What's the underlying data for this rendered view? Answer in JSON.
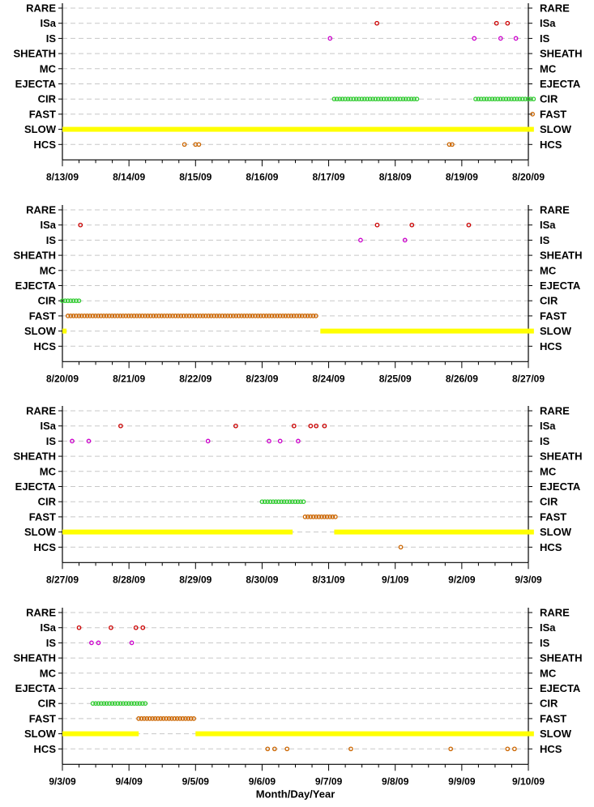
{
  "colors": {
    "RARE": "#000000",
    "ISa": "#cc0000",
    "IS": "#cc00cc",
    "SHEATH": "#000000",
    "MC": "#000000",
    "EJECTA": "#000000",
    "CIR": "#33cc33",
    "FAST": "#cc6600",
    "SLOW": "#ffff00",
    "HCS": "#cc6600",
    "grid": "#c8c8c8",
    "axis": "#000000"
  },
  "chart_data": [
    {
      "type": "scatter",
      "title": "",
      "xlabel": "",
      "ylabel": "",
      "categories": [
        "RARE",
        "ISa",
        "IS",
        "SHEATH",
        "MC",
        "EJECTA",
        "CIR",
        "FAST",
        "SLOW",
        "HCS"
      ],
      "xlim": [
        "2009-08-13",
        "2009-08-20"
      ],
      "x_ticks": [
        "8/13/09",
        "8/14/09",
        "8/15/09",
        "8/16/09",
        "8/17/09",
        "8/18/09",
        "8/19/09",
        "8/20/09"
      ],
      "grid": true,
      "series": [
        {
          "name": "ISa",
          "points": [
            [
              "2009-08-17",
              17.4
            ],
            [
              "2009-08-19",
              12.5
            ],
            [
              "2009-08-19",
              16.5
            ]
          ]
        },
        {
          "name": "IS",
          "points": [
            [
              "2009-08-17",
              0.5
            ],
            [
              "2009-08-19",
              4.5
            ],
            [
              "2009-08-19",
              14.0
            ],
            [
              "2009-08-19",
              19.5
            ]
          ]
        },
        {
          "name": "CIR",
          "intervals": [
            [
              [
                "2009-08-17",
                2
              ],
              [
                "2009-08-18",
                8
              ]
            ],
            [
              [
                "2009-08-19",
                5
              ],
              [
                "2009-08-20",
                2
              ]
            ]
          ]
        },
        {
          "name": "FAST",
          "points": [
            [
              "2009-08-20",
              1.5
            ]
          ]
        },
        {
          "name": "SLOW",
          "intervals": [
            [
              [
                "2009-08-13",
                0
              ],
              [
                "2009-08-20",
                2
              ]
            ]
          ]
        },
        {
          "name": "HCS",
          "points": [
            [
              "2009-08-14",
              20
            ],
            [
              "2009-08-15",
              0
            ],
            [
              "2009-08-15",
              1.2
            ],
            [
              "2009-08-18",
              19.5
            ],
            [
              "2009-08-18",
              20.5
            ]
          ]
        }
      ]
    },
    {
      "type": "scatter",
      "title": "",
      "xlabel": "",
      "ylabel": "",
      "categories": [
        "RARE",
        "ISa",
        "IS",
        "SHEATH",
        "MC",
        "EJECTA",
        "CIR",
        "FAST",
        "SLOW",
        "HCS"
      ],
      "xlim": [
        "2009-08-20",
        "2009-08-27"
      ],
      "x_ticks": [
        "8/20/09",
        "8/21/09",
        "8/22/09",
        "8/23/09",
        "8/24/09",
        "8/25/09",
        "8/26/09",
        "8/27/09"
      ],
      "grid": true,
      "series": [
        {
          "name": "ISa",
          "points": [
            [
              "2009-08-20",
              6.5
            ],
            [
              "2009-08-24",
              17.5
            ],
            [
              "2009-08-25",
              6.0
            ],
            [
              "2009-08-26",
              2.5
            ]
          ]
        },
        {
          "name": "IS",
          "points": [
            [
              "2009-08-24",
              11.5
            ],
            [
              "2009-08-25",
              3.5
            ]
          ]
        },
        {
          "name": "CIR",
          "intervals": [
            [
              [
                "2009-08-20",
                0
              ],
              [
                "2009-08-20",
                6
              ]
            ]
          ]
        },
        {
          "name": "FAST",
          "intervals": [
            [
              [
                "2009-08-20",
                2
              ],
              [
                "2009-08-23",
                20
              ]
            ]
          ]
        },
        {
          "name": "SLOW",
          "intervals": [
            [
              [
                "2009-08-20",
                0
              ],
              [
                "2009-08-20",
                1.5
              ]
            ],
            [
              [
                "2009-08-23",
                21
              ],
              [
                "2009-08-27",
                2
              ]
            ]
          ]
        }
      ]
    },
    {
      "type": "scatter",
      "title": "",
      "xlabel": "",
      "ylabel": "",
      "categories": [
        "RARE",
        "ISa",
        "IS",
        "SHEATH",
        "MC",
        "EJECTA",
        "CIR",
        "FAST",
        "SLOW",
        "HCS"
      ],
      "xlim": [
        "2009-08-27",
        "2009-09-03"
      ],
      "x_ticks": [
        "8/27/09",
        "8/28/09",
        "8/29/09",
        "8/30/09",
        "8/31/09",
        "9/1/09",
        "9/2/09",
        "9/3/09"
      ],
      "grid": true,
      "series": [
        {
          "name": "ISa",
          "points": [
            [
              "2009-08-27",
              21
            ],
            [
              "2009-08-29",
              14.5
            ],
            [
              "2009-08-30",
              11.5
            ],
            [
              "2009-08-30",
              17.5
            ],
            [
              "2009-08-30",
              19.5
            ],
            [
              "2009-08-30",
              22.5
            ]
          ]
        },
        {
          "name": "IS",
          "points": [
            [
              "2009-08-27",
              3.5
            ],
            [
              "2009-08-27",
              9.5
            ],
            [
              "2009-08-29",
              4.5
            ],
            [
              "2009-08-30",
              2.5
            ],
            [
              "2009-08-30",
              6.5
            ],
            [
              "2009-08-30",
              13.0
            ]
          ]
        },
        {
          "name": "CIR",
          "intervals": [
            [
              [
                "2009-08-30",
                0
              ],
              [
                "2009-08-30",
                15.5
              ]
            ]
          ]
        },
        {
          "name": "FAST",
          "intervals": [
            [
              [
                "2009-08-30",
                15.5
              ],
              [
                "2009-08-31",
                2.5
              ]
            ]
          ]
        },
        {
          "name": "SLOW",
          "intervals": [
            [
              [
                "2009-08-27",
                0
              ],
              [
                "2009-08-30",
                11
              ]
            ],
            [
              [
                "2009-08-31",
                2
              ],
              [
                "2009-09-03",
                2
              ]
            ]
          ]
        },
        {
          "name": "HCS",
          "points": [
            [
              "2009-09-01",
              2.0
            ]
          ]
        }
      ]
    },
    {
      "type": "scatter",
      "title": "",
      "xlabel": "Month/Day/Year",
      "ylabel": "",
      "categories": [
        "RARE",
        "ISa",
        "IS",
        "SHEATH",
        "MC",
        "EJECTA",
        "CIR",
        "FAST",
        "SLOW",
        "HCS"
      ],
      "xlim": [
        "2009-09-03",
        "2009-09-10"
      ],
      "x_ticks": [
        "9/3/09",
        "9/4/09",
        "9/5/09",
        "9/6/09",
        "9/7/09",
        "9/8/09",
        "9/9/09",
        "9/10/09"
      ],
      "grid": true,
      "series": [
        {
          "name": "ISa",
          "points": [
            [
              "2009-09-03",
              6.0
            ],
            [
              "2009-09-03",
              17.5
            ],
            [
              "2009-09-04",
              2.5
            ],
            [
              "2009-09-04",
              5.0
            ]
          ]
        },
        {
          "name": "IS",
          "points": [
            [
              "2009-09-03",
              10.5
            ],
            [
              "2009-09-03",
              13.0
            ],
            [
              "2009-09-04",
              1.0
            ]
          ]
        },
        {
          "name": "CIR",
          "intervals": [
            [
              [
                "2009-09-03",
                11
              ],
              [
                "2009-09-04",
                6
              ]
            ]
          ]
        },
        {
          "name": "FAST",
          "intervals": [
            [
              [
                "2009-09-04",
                3.5
              ],
              [
                "2009-09-04",
                24
              ]
            ]
          ]
        },
        {
          "name": "SLOW",
          "intervals": [
            [
              [
                "2009-09-03",
                0
              ],
              [
                "2009-09-04",
                3.5
              ]
            ],
            [
              [
                "2009-09-05",
                0
              ],
              [
                "2009-09-10",
                2
              ]
            ]
          ]
        },
        {
          "name": "HCS",
          "points": [
            [
              "2009-09-06",
              2.0
            ],
            [
              "2009-09-06",
              4.5
            ],
            [
              "2009-09-06",
              9.0
            ],
            [
              "2009-09-07",
              8.0
            ],
            [
              "2009-09-08",
              20.0
            ],
            [
              "2009-09-09",
              16.5
            ],
            [
              "2009-09-09",
              19.0
            ]
          ]
        }
      ]
    }
  ]
}
